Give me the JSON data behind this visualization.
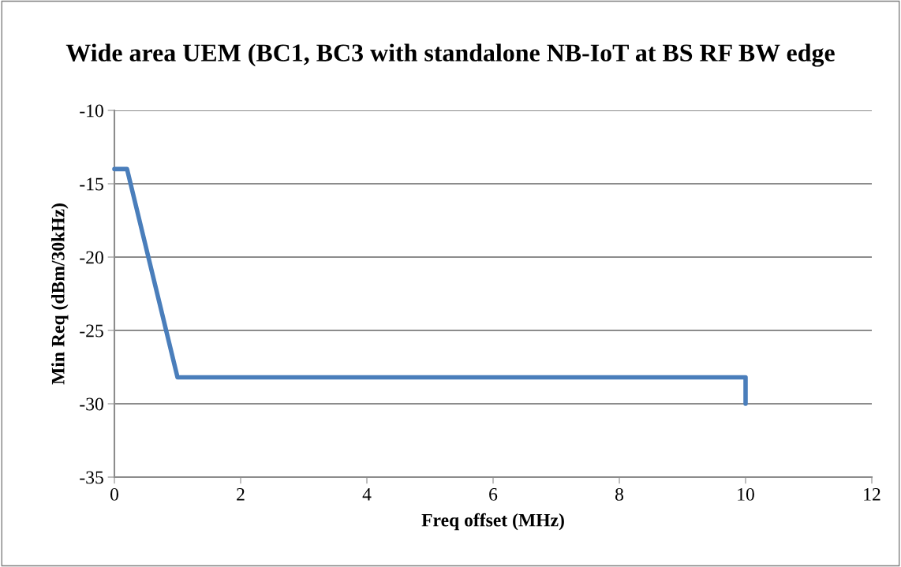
{
  "chart_data": {
    "type": "line",
    "title": "Wide area UEM (BC1, BC3 with standalone NB-IoT at BS RF BW edge",
    "xlabel": "Freq offset (MHz)",
    "ylabel": "Min Req (dBm/30kHz)",
    "x": [
      0,
      0.2,
      1,
      10,
      10
    ],
    "series": [
      {
        "color": "#4a7ebb",
        "values": [
          -14,
          -14,
          -28.2,
          -28.2,
          -30
        ]
      }
    ],
    "xlim": [
      0,
      12
    ],
    "xticks": [
      0,
      2,
      4,
      6,
      8,
      10,
      12
    ],
    "ylim": [
      -35,
      -10
    ],
    "yticks": [
      -35,
      -30,
      -25,
      -20,
      -15,
      -10
    ],
    "grid": "y",
    "legend": false,
    "marker": "none",
    "line_style": "solid"
  }
}
